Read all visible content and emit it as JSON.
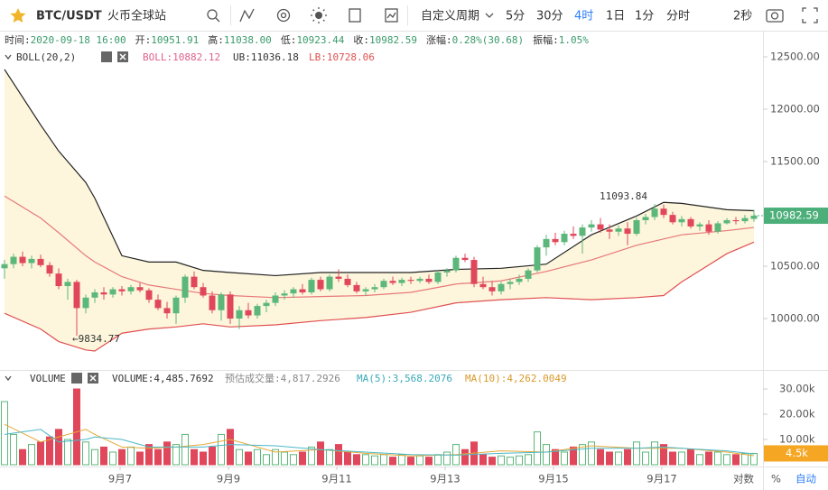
{
  "toolbar": {
    "symbol": "BTC/USDT",
    "exchange": "火币全球站",
    "custom_period": "自定义周期",
    "periods": [
      "5分",
      "30分",
      "4时",
      "1日",
      "1分",
      "分时"
    ],
    "active_period": 2,
    "refresh": "2秒"
  },
  "footer": {
    "log": "对数",
    "percent": "%",
    "auto": "自动"
  },
  "chart_data": [
    {
      "type": "candlestick",
      "info": [
        {
          "label": "时间:",
          "value": "2020-09-18 16:00"
        },
        {
          "label": "开:",
          "value": "10951.91"
        },
        {
          "label": "高:",
          "value": "11038.00"
        },
        {
          "label": "低:",
          "value": "10923.44"
        },
        {
          "label": "收:",
          "value": "10982.59"
        },
        {
          "label": "涨幅:",
          "value": "0.28%(30.68)"
        },
        {
          "label": "振幅:",
          "value": "1.05%"
        }
      ],
      "indicator": "BOLL(20,2)",
      "indicator_values": [
        "BOLL:10882.12",
        "UB:11036.18",
        "LB:10728.06"
      ],
      "up_color": "#5cb77a",
      "down_color": "#e0475b",
      "open": [
        10480,
        10520,
        10590,
        10530,
        10570,
        10510,
        10430,
        10310,
        10350,
        10100,
        10200,
        10250,
        10230,
        10280,
        10260,
        10300,
        10270,
        10180,
        10100,
        10050,
        10200,
        10400,
        10300,
        10220,
        10080,
        10230,
        10000,
        10080,
        10030,
        10120,
        10150,
        10220,
        10240,
        10280,
        10250,
        10370,
        10280,
        10400,
        10380,
        10320,
        10260,
        10280,
        10300,
        10360,
        10340,
        10370,
        10360,
        10380,
        10350,
        10440,
        10460,
        10580,
        10560,
        10330,
        10300,
        10260,
        10330,
        10350,
        10380,
        10460,
        10680,
        10760,
        10730,
        10810,
        10790,
        10870,
        10900,
        10850,
        10830,
        10860,
        10810,
        10940,
        10970,
        11050,
        10990,
        10920,
        10950,
        10880,
        10900,
        10830,
        10910,
        10940,
        10930,
        10951.91
      ],
      "high": [
        10560,
        10620,
        10640,
        10600,
        10610,
        10540,
        10480,
        10380,
        10370,
        10230,
        10280,
        10300,
        10300,
        10310,
        10320,
        10340,
        10290,
        10230,
        10160,
        10220,
        10420,
        10450,
        10340,
        10260,
        10250,
        10260,
        10120,
        10150,
        10140,
        10180,
        10250,
        10270,
        10300,
        10330,
        10390,
        10400,
        10420,
        10470,
        10420,
        10350,
        10300,
        10330,
        10380,
        10400,
        10390,
        10400,
        10400,
        10420,
        10460,
        10480,
        10600,
        10620,
        10590,
        10400,
        10360,
        10350,
        10380,
        10420,
        10480,
        10700,
        10800,
        10820,
        10840,
        10880,
        10900,
        10940,
        10960,
        10900,
        10890,
        10920,
        10960,
        11000,
        11093.84,
        11090,
        11020,
        10980,
        10970,
        10920,
        10940,
        10930,
        10960,
        10970,
        10990,
        11038
      ],
      "low": [
        10380,
        10480,
        10500,
        10480,
        10490,
        10400,
        10280,
        10180,
        9834.77,
        10050,
        10150,
        10180,
        10200,
        10220,
        10230,
        10250,
        10150,
        10080,
        10000,
        9950,
        10150,
        10280,
        10200,
        10050,
        9980,
        9950,
        9900,
        10000,
        10000,
        10060,
        10120,
        10180,
        10200,
        10230,
        10230,
        10260,
        10260,
        10350,
        10300,
        10240,
        10220,
        10250,
        10280,
        10320,
        10310,
        10330,
        10340,
        10330,
        10330,
        10400,
        10440,
        10540,
        10300,
        10280,
        10220,
        10230,
        10280,
        10320,
        10350,
        10440,
        10600,
        10700,
        10700,
        10760,
        10620,
        10830,
        10820,
        10760,
        10790,
        10700,
        10790,
        10900,
        10940,
        10960,
        10900,
        10880,
        10860,
        10840,
        10800,
        10810,
        10900,
        10900,
        10910,
        10923.44
      ],
      "close": [
        10520,
        10590,
        10530,
        10570,
        10510,
        10430,
        10310,
        10350,
        10100,
        10200,
        10250,
        10230,
        10280,
        10260,
        10300,
        10270,
        10180,
        10100,
        10050,
        10200,
        10400,
        10300,
        10220,
        10080,
        10230,
        10000,
        10080,
        10030,
        10120,
        10150,
        10220,
        10240,
        10280,
        10250,
        10370,
        10280,
        10400,
        10380,
        10320,
        10260,
        10280,
        10300,
        10360,
        10340,
        10370,
        10360,
        10380,
        10350,
        10440,
        10460,
        10580,
        10560,
        10330,
        10300,
        10260,
        10330,
        10350,
        10380,
        10460,
        10680,
        10760,
        10730,
        10810,
        10790,
        10870,
        10900,
        10850,
        10830,
        10860,
        10810,
        10940,
        10970,
        11050,
        10990,
        10920,
        10950,
        10880,
        10900,
        10830,
        10910,
        10940,
        10930,
        10960,
        10982.59
      ],
      "bands": [
        {
          "color": "#222222",
          "x": [
            0,
            4,
            6,
            9,
            10,
            13,
            16,
            19,
            22,
            25,
            30,
            35,
            40,
            45,
            50,
            55,
            60,
            65,
            70,
            73,
            75,
            80,
            83
          ],
          "values": [
            12380,
            11850,
            11600,
            11300,
            11150,
            10600,
            10540,
            10540,
            10460,
            10440,
            10410,
            10440,
            10440,
            10440,
            10470,
            10480,
            10520,
            10800,
            10980,
            11110,
            11100,
            11040,
            11030
          ]
        },
        {
          "color": "#e8787a",
          "x": [
            0,
            4,
            6,
            9,
            10,
            13,
            16,
            19,
            22,
            25,
            30,
            35,
            40,
            45,
            50,
            55,
            60,
            65,
            70,
            73,
            75,
            80,
            83
          ],
          "values": [
            11170,
            10960,
            10820,
            10600,
            10540,
            10400,
            10320,
            10280,
            10240,
            10220,
            10200,
            10210,
            10220,
            10250,
            10330,
            10360,
            10450,
            10560,
            10700,
            10760,
            10800,
            10840,
            10870
          ]
        },
        {
          "color": "#e05050",
          "x": [
            0,
            4,
            6,
            9,
            10,
            13,
            16,
            19,
            22,
            25,
            30,
            35,
            40,
            45,
            50,
            55,
            60,
            65,
            70,
            73,
            75,
            80,
            83
          ],
          "values": [
            10050,
            9900,
            9780,
            9700,
            9690,
            9860,
            9900,
            9920,
            9950,
            9920,
            9940,
            9980,
            10010,
            10060,
            10150,
            10180,
            10200,
            10180,
            10200,
            10220,
            10350,
            10620,
            10730
          ]
        }
      ],
      "band_fill": "#fdf6dc",
      "annotations": [
        {
          "index": 72,
          "value": 11093.84,
          "label": "11093.84"
        },
        {
          "index": 8,
          "value": 9834.77,
          "label": "←9834.77"
        }
      ],
      "last_price_color": "#4caf7a",
      "xlim": [
        -0.5,
        84
      ],
      "xticks": [
        {
          "value": 12.8,
          "label": "9月7"
        },
        {
          "value": 24.8,
          "label": "9月9"
        },
        {
          "value": 36.8,
          "label": "9月11"
        },
        {
          "value": 48.8,
          "label": "9月13"
        },
        {
          "value": 60.8,
          "label": "9月15"
        },
        {
          "value": 72.8,
          "label": "9月17"
        }
      ],
      "ylim": [
        9526,
        12569
      ],
      "yticks": [
        {
          "value": 10000,
          "label": "10000.00"
        },
        {
          "value": 10500,
          "label": "10500.00"
        },
        {
          "value": 11000,
          "label": "11000.00"
        },
        {
          "value": 11500,
          "label": "11500.00"
        },
        {
          "value": 12000,
          "label": "12000.00"
        },
        {
          "value": 12500,
          "label": "12500.00"
        }
      ]
    },
    {
      "type": "bar",
      "indicator": "VOLUME",
      "indicator_values": [
        "VOLUME:4,485.7692",
        "预估成交量:4,817.2926",
        "MA(5):3,568.2076",
        "MA(10):4,262.0049"
      ],
      "values": [
        25000,
        12000,
        6000,
        8000,
        9000,
        11000,
        14000,
        10000,
        30000,
        9000,
        6000,
        7000,
        5000,
        6000,
        7000,
        5000,
        8000,
        6000,
        9000,
        8000,
        12000,
        6000,
        5000,
        7000,
        12000,
        14000,
        6000,
        5000,
        6000,
        4000,
        6000,
        5000,
        4000,
        5000,
        7000,
        9000,
        6000,
        8000,
        5000,
        4000,
        4000,
        3500,
        4000,
        3000,
        4000,
        3000,
        3500,
        3000,
        4000,
        5000,
        8000,
        6000,
        9000,
        4000,
        3000,
        3500,
        3000,
        3500,
        4000,
        13000,
        8000,
        6000,
        5000,
        7000,
        8000,
        9000,
        6000,
        5000,
        5000,
        6000,
        9000,
        5000,
        9000,
        8000,
        5000,
        5000,
        6000,
        4000,
        5000,
        5000,
        4000,
        4000,
        4500,
        4485.7692
      ],
      "lines": [
        {
          "color": "#e6a93a",
          "x": [
            0,
            4,
            6,
            9,
            10,
            13,
            16,
            19,
            22,
            25,
            30,
            35,
            40,
            45,
            50,
            55,
            60,
            65,
            70,
            73,
            75,
            80,
            83
          ],
          "values": [
            16000,
            9000,
            11000,
            14000,
            12000,
            7000,
            6500,
            7000,
            8000,
            10000,
            5000,
            6000,
            4500,
            3500,
            4000,
            5500,
            5000,
            7500,
            6500,
            6500,
            6500,
            5000,
            3568.2076
          ]
        },
        {
          "color": "#4bb8c8",
          "x": [
            0,
            4,
            6,
            9,
            10,
            13,
            16,
            19,
            22,
            25,
            30,
            35,
            40,
            45,
            50,
            55,
            60,
            65,
            70,
            73,
            75,
            80,
            83
          ],
          "values": [
            12000,
            14000,
            9000,
            10000,
            11000,
            10000,
            7000,
            7000,
            7000,
            8000,
            7500,
            6000,
            5000,
            4000,
            3800,
            4500,
            5000,
            6500,
            6500,
            7000,
            6500,
            5500,
            4262.0049
          ]
        }
      ],
      "last_label": "4.5k",
      "last_color": "#f5a623",
      "ylim": [
        0,
        36800
      ],
      "yticks": [
        {
          "value": 10000,
          "label": "10.00k"
        },
        {
          "value": 20000,
          "label": "20.00k"
        },
        {
          "value": 30000,
          "label": "30.00k"
        }
      ]
    }
  ]
}
